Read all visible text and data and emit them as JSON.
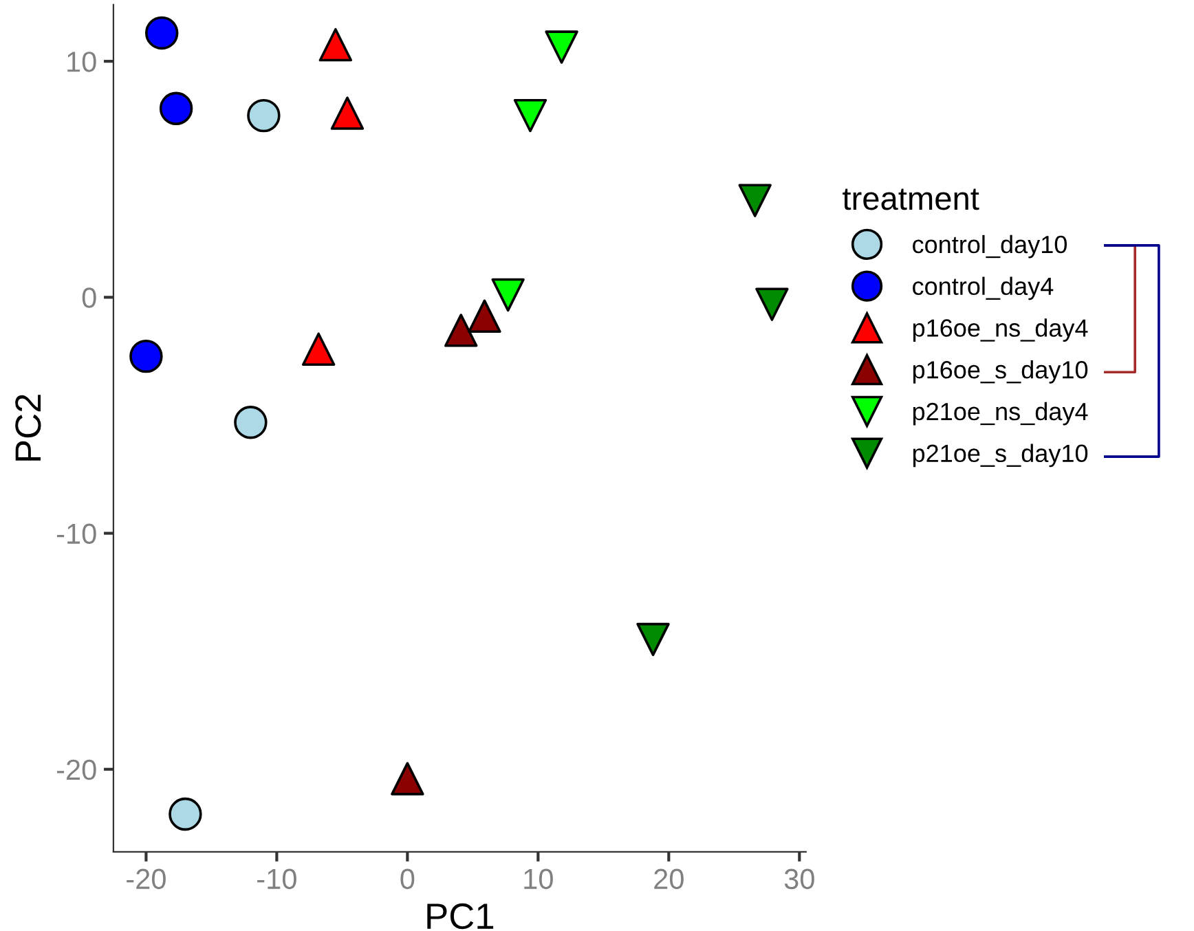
{
  "chart_data": {
    "type": "scatter",
    "xlabel": "PC1",
    "ylabel": "PC2",
    "legend_title": "treatment",
    "legend": "right",
    "grid": false,
    "xlim": [
      -22.5,
      30.5
    ],
    "ylim": [
      -23.5,
      12.4
    ],
    "xticks": [
      -20,
      -10,
      0,
      10,
      20,
      30
    ],
    "yticks": [
      -20,
      -10,
      0,
      10
    ],
    "series": [
      {
        "name": "control_day10",
        "color": "#add8e6",
        "marker": "circle",
        "x": [
          -11.0,
          -12.0,
          -17.0
        ],
        "values": [
          7.7,
          -5.3,
          -21.9
        ]
      },
      {
        "name": "control_day4",
        "color": "#0000ff",
        "marker": "circle",
        "x": [
          -18.8,
          -17.7,
          -20.0
        ],
        "values": [
          11.2,
          8.0,
          -2.5
        ]
      },
      {
        "name": "p16oe_ns_day4",
        "color": "#ff0000",
        "marker": "triangle",
        "x": [
          -5.5,
          -4.6,
          -6.8
        ],
        "values": [
          10.7,
          7.8,
          -2.2
        ]
      },
      {
        "name": "p16oe_s_day10",
        "color": "#8b0000",
        "marker": "triangle",
        "x": [
          4.1,
          5.9,
          0.0
        ],
        "values": [
          -1.4,
          -0.8,
          -20.4
        ]
      },
      {
        "name": "p21oe_ns_day4",
        "color": "#00ff00",
        "marker": "triangle-down",
        "x": [
          11.8,
          9.4,
          7.7
        ],
        "values": [
          10.6,
          7.7,
          0.1
        ]
      },
      {
        "name": "p21oe_s_day10",
        "color": "#008b00",
        "marker": "triangle-down",
        "x": [
          26.6,
          27.9,
          18.8
        ],
        "values": [
          4.1,
          -0.3,
          -14.5
        ]
      }
    ]
  }
}
